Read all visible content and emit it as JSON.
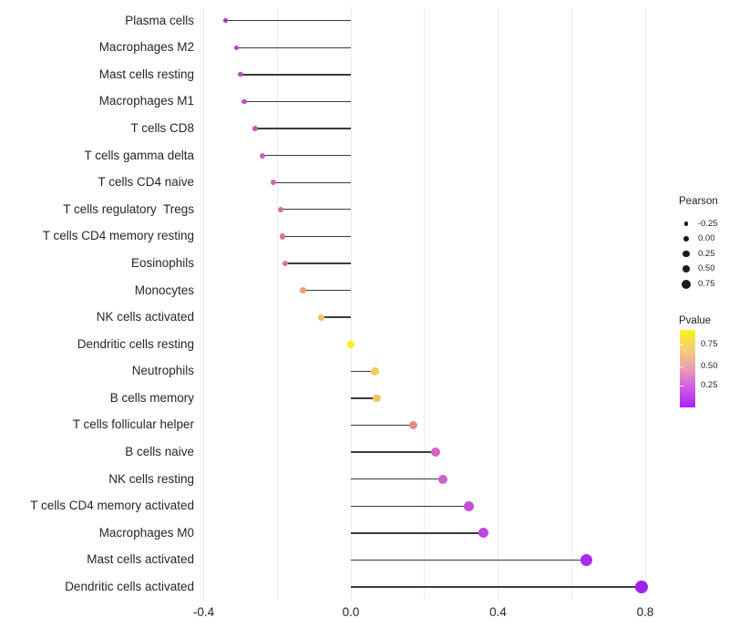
{
  "figure": {
    "background": "#ffffff",
    "gridline_color": "#ececec",
    "stem_color": "#3b3b3b",
    "text_color": "#262626"
  },
  "x_axis": {
    "ticks": [
      {
        "label": "-0.4",
        "value": -0.4
      },
      {
        "label": "0.0",
        "value": 0.0
      },
      {
        "label": "0.4",
        "value": 0.4
      },
      {
        "label": "0.8",
        "value": 0.8
      }
    ]
  },
  "legend": {
    "pearson": {
      "title": "Pearson",
      "items": [
        {
          "label": "-0.25",
          "value": -0.25
        },
        {
          "label": "0.00",
          "value": 0.0
        },
        {
          "label": "0.25",
          "value": 0.25
        },
        {
          "label": "0.50",
          "value": 0.5
        },
        {
          "label": "0.75",
          "value": 0.75
        }
      ]
    },
    "pvalue": {
      "title": "Pvalue",
      "ticks": [
        {
          "label": "0.75",
          "offset": 16
        },
        {
          "label": "0.50",
          "offset": 40
        },
        {
          "label": "0.25",
          "offset": 61
        }
      ],
      "gradient": [
        "#F9F21D",
        "#F6CE77",
        "#E9A0B2",
        "#CE5BE6",
        "#AB22F2"
      ]
    }
  },
  "chart_data": {
    "type": "lollipop",
    "orientation": "horizontal",
    "title": "",
    "xlabel": "",
    "ylabel": "",
    "xlim": [
      -0.45,
      0.87
    ],
    "x_gridlines": [
      -0.4,
      -0.2,
      0.0,
      0.2,
      0.4,
      0.6,
      0.8
    ],
    "size_encoding": "Pearson",
    "color_encoding": "Pvalue",
    "points": [
      {
        "name": "Plasma cells",
        "pearson": -0.34,
        "color": "#A034C6"
      },
      {
        "name": "Macrophages M2",
        "pearson": -0.31,
        "color": "#B442C6"
      },
      {
        "name": "Mast cells resting",
        "pearson": -0.3,
        "color": "#BA48C4"
      },
      {
        "name": "Macrophages M1",
        "pearson": -0.29,
        "color": "#BD4CC1"
      },
      {
        "name": "T cells CD8",
        "pearson": -0.26,
        "color": "#C958B8"
      },
      {
        "name": "T cells gamma delta",
        "pearson": -0.24,
        "color": "#CB5FC0"
      },
      {
        "name": "T cells CD4 naive",
        "pearson": -0.21,
        "color": "#D069AE"
      },
      {
        "name": "T cells regulatory  Tregs",
        "pearson": -0.19,
        "color": "#D26F9C"
      },
      {
        "name": "T cells CD4 memory resting",
        "pearson": -0.185,
        "color": "#D7738F"
      },
      {
        "name": "Eosinophils",
        "pearson": -0.178,
        "color": "#DA778C"
      },
      {
        "name": "Monocytes",
        "pearson": -0.13,
        "color": "#EB9D74"
      },
      {
        "name": "NK cells activated",
        "pearson": -0.08,
        "color": "#F1C35C"
      },
      {
        "name": "Dendritic cells resting",
        "pearson": 0.0,
        "color": "#F9F016"
      },
      {
        "name": "Neutrophils",
        "pearson": 0.066,
        "color": "#F3C960"
      },
      {
        "name": "B cells memory",
        "pearson": 0.07,
        "color": "#F1C55C"
      },
      {
        "name": "T cells follicular helper",
        "pearson": 0.17,
        "color": "#E78C85"
      },
      {
        "name": "B cells naive",
        "pearson": 0.23,
        "color": "#D465C6"
      },
      {
        "name": "NK cells resting",
        "pearson": 0.25,
        "color": "#D160CB"
      },
      {
        "name": "T cells CD4 memory activated",
        "pearson": 0.32,
        "color": "#C350DA"
      },
      {
        "name": "Macrophages M0",
        "pearson": 0.36,
        "color": "#BC46E0"
      },
      {
        "name": "Mast cells activated",
        "pearson": 0.64,
        "color": "#A92BEB"
      },
      {
        "name": "Dendritic cells activated",
        "pearson": 0.79,
        "color": "#A122EF"
      }
    ]
  }
}
